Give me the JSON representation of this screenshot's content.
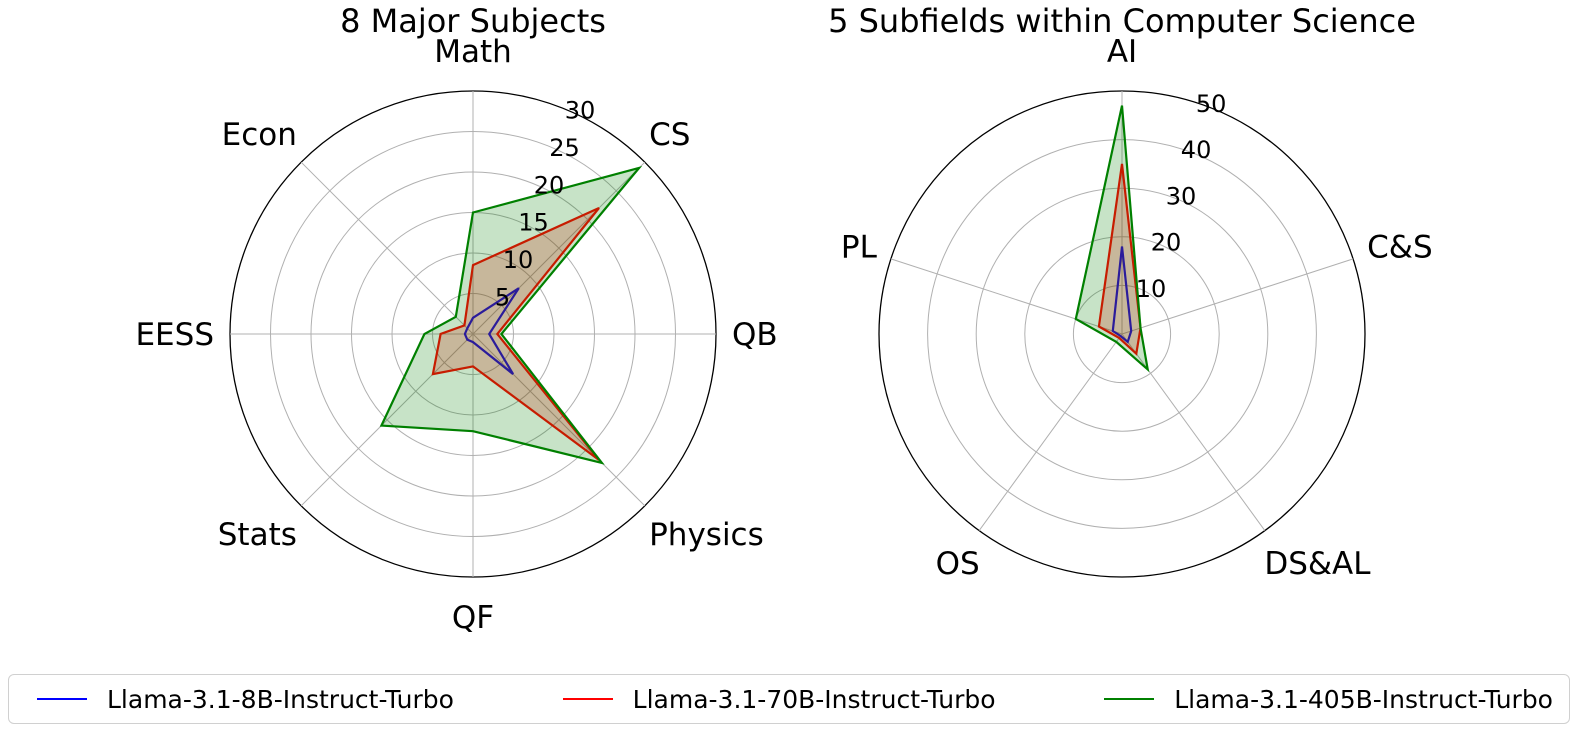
{
  "chart_data": [
    {
      "type": "radar",
      "title": "8 Major Subjects",
      "categories": [
        "Math",
        "CS",
        "QB",
        "Physics",
        "QF",
        "Stats",
        "EESS",
        "Econ"
      ],
      "rmax": 30,
      "rticks": [
        5,
        10,
        15,
        20,
        25,
        30
      ],
      "rtick_labels": [
        "5",
        "10",
        "15",
        "20",
        "25",
        "30"
      ],
      "grid": true,
      "series": [
        {
          "name": "Llama-3.1-8B-Instruct-Turbo",
          "color": "#0000ff",
          "fill": false,
          "values": [
            2,
            8,
            2,
            7,
            1,
            1,
            1,
            1
          ]
        },
        {
          "name": "Llama-3.1-70B-Instruct-Turbo",
          "color": "#ff0000",
          "fill": true,
          "values": [
            8.5,
            22,
            3,
            22,
            4,
            7,
            4,
            1.5
          ]
        },
        {
          "name": "Llama-3.1-405B-Instruct-Turbo",
          "color": "#008000",
          "fill": true,
          "values": [
            15,
            29,
            3.5,
            22.5,
            12,
            16,
            6,
            3
          ]
        }
      ]
    },
    {
      "type": "radar",
      "title": "5 Subfields within Computer Science",
      "categories": [
        "AI",
        "C&S",
        "DS&AL",
        "OS",
        "PL"
      ],
      "rmax": 50,
      "rticks": [
        10,
        20,
        30,
        40,
        50
      ],
      "rtick_labels": [
        "10",
        "20",
        "30",
        "40",
        "50"
      ],
      "grid": true,
      "series": [
        {
          "name": "Llama-3.1-8B-Instruct-Turbo",
          "color": "#0000ff",
          "fill": false,
          "values": [
            18,
            2,
            2,
            0.5,
            2
          ]
        },
        {
          "name": "Llama-3.1-70B-Instruct-Turbo",
          "color": "#ff0000",
          "fill": true,
          "values": [
            35,
            4,
            5,
            1,
            5
          ]
        },
        {
          "name": "Llama-3.1-405B-Instruct-Turbo",
          "color": "#008000",
          "fill": true,
          "values": [
            47,
            4,
            9,
            2,
            10
          ]
        }
      ]
    }
  ],
  "legend": {
    "placement": "bottom",
    "items": [
      {
        "label": "Llama-3.1-8B-Instruct-Turbo",
        "color": "#0000ff"
      },
      {
        "label": "Llama-3.1-70B-Instruct-Turbo",
        "color": "#ff0000"
      },
      {
        "label": "Llama-3.1-405B-Instruct-Turbo",
        "color": "#008000"
      }
    ]
  }
}
